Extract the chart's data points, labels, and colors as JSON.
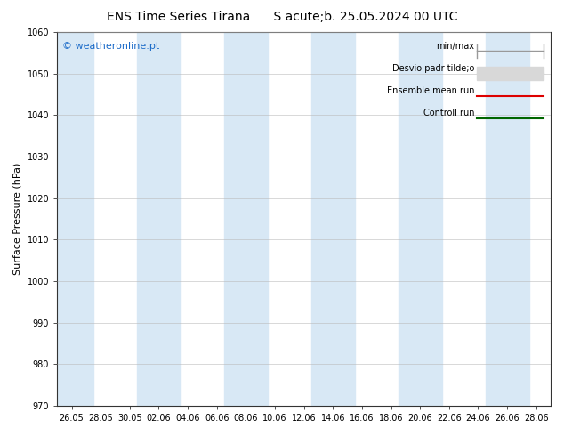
{
  "title": "ENS Time Series Tirana      S acute;b. 25.05.2024 00 UTC",
  "ylabel": "Surface Pressure (hPa)",
  "ylim": [
    970,
    1060
  ],
  "yticks": [
    970,
    980,
    990,
    1000,
    1010,
    1020,
    1030,
    1040,
    1050,
    1060
  ],
  "x_tick_labels": [
    "26.05",
    "28.05",
    "30.05",
    "02.06",
    "04.06",
    "06.06",
    "08.06",
    "10.06",
    "12.06",
    "14.06",
    "16.06",
    "18.06",
    "20.06",
    "22.06",
    "24.06",
    "26.06",
    "28.06"
  ],
  "background_color": "#ffffff",
  "plot_bg_color": "#ffffff",
  "band_color": "#d8e8f5",
  "watermark": "© weatheronline.pt",
  "legend_items": [
    "min/max",
    "Desvio padr tilde;o",
    "Ensemble mean run",
    "Controll run"
  ],
  "band_indices": [
    0,
    3,
    6,
    9,
    12,
    15
  ],
  "title_fontsize": 10,
  "tick_fontsize": 7,
  "ylabel_fontsize": 8
}
